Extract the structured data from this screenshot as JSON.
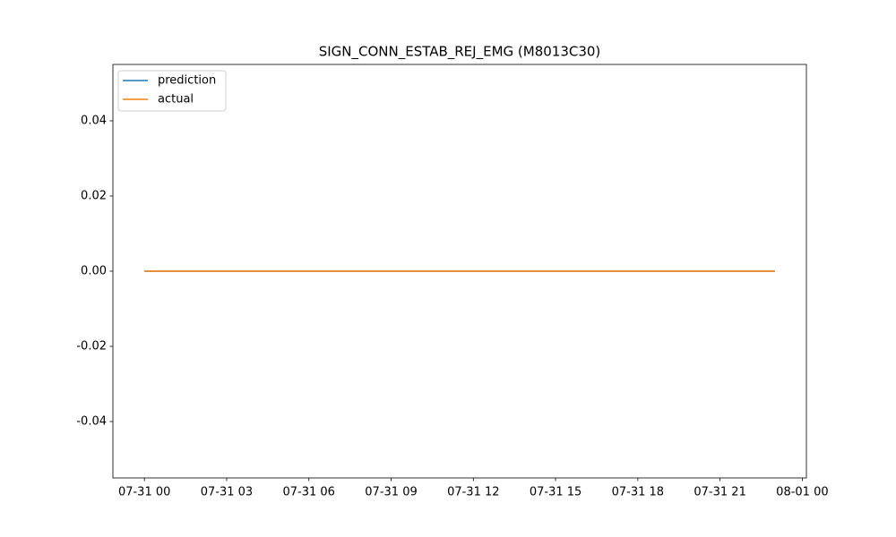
{
  "chart_data": {
    "type": "line",
    "title": "SIGN_CONN_ESTAB_REJ_EMG (M8013C30)",
    "x": [
      0,
      1,
      2,
      3,
      4,
      5,
      6,
      7,
      8,
      9,
      10,
      11,
      12,
      13,
      14,
      15,
      16,
      17,
      18,
      19,
      20,
      21,
      22,
      23
    ],
    "series": [
      {
        "name": "prediction",
        "color": "#1f77b4",
        "values": [
          0,
          0,
          0,
          0,
          0,
          0,
          0,
          0,
          0,
          0,
          0,
          0,
          0,
          0,
          0,
          0,
          0,
          0,
          0,
          0,
          0,
          0,
          0,
          0
        ]
      },
      {
        "name": "actual",
        "color": "#ff7f0e",
        "values": [
          0,
          0,
          0,
          0,
          0,
          0,
          0,
          0,
          0,
          0,
          0,
          0,
          0,
          0,
          0,
          0,
          0,
          0,
          0,
          0,
          0,
          0,
          0,
          0
        ]
      }
    ],
    "xlim": [
      -1.15,
      24.15
    ],
    "xticks": [
      {
        "value": 0,
        "label": "07-31 00"
      },
      {
        "value": 3,
        "label": "07-31 03"
      },
      {
        "value": 6,
        "label": "07-31 06"
      },
      {
        "value": 9,
        "label": "07-31 09"
      },
      {
        "value": 12,
        "label": "07-31 12"
      },
      {
        "value": 15,
        "label": "07-31 15"
      },
      {
        "value": 18,
        "label": "07-31 18"
      },
      {
        "value": 21,
        "label": "07-31 21"
      },
      {
        "value": 24,
        "label": "08-01 00"
      }
    ],
    "ylim": [
      -0.055,
      0.055
    ],
    "yticks": [
      -0.04,
      -0.02,
      {
        "value": 0,
        "label": "0.00"
      },
      0.02,
      0.04
    ],
    "legend": "upper left"
  }
}
